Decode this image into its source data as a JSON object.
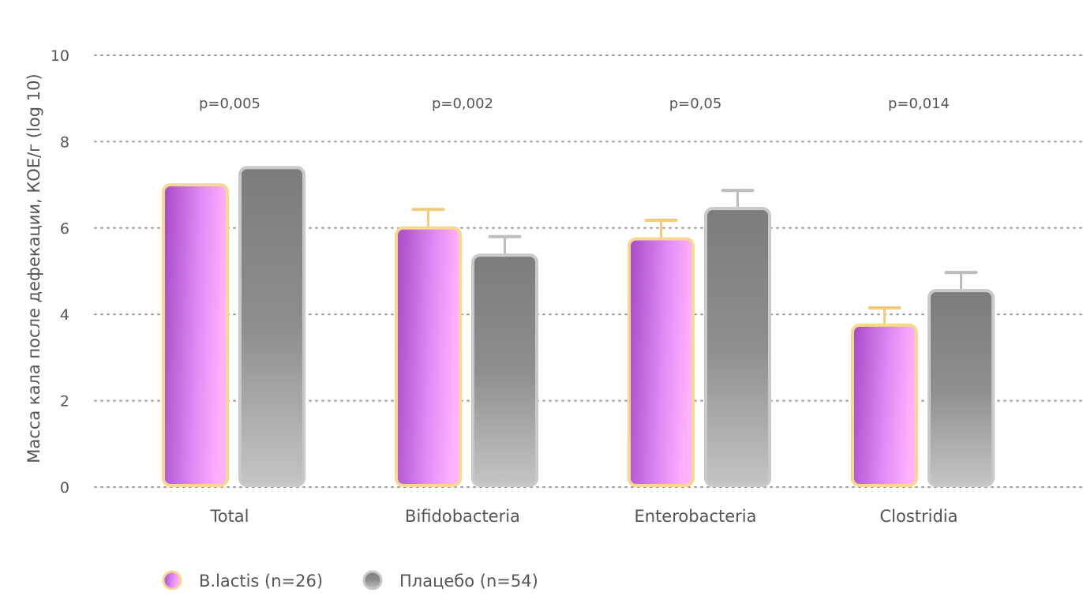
{
  "chart_data": {
    "type": "bar",
    "title": "",
    "xlabel": "",
    "ylabel": "Масса кала после дефекации, КОЕ/г  (log 10)",
    "ylim": [
      0,
      10
    ],
    "yticks": [
      "0",
      "2",
      "4",
      "6",
      "8",
      "10"
    ],
    "grid": true,
    "legend_position": "bottom-left",
    "categories": [
      "Total",
      "Bifidobacteria",
      "Enterobacteria",
      "Clostridia"
    ],
    "p_values": [
      "p=0,005",
      "p=0,002",
      "p=0,05",
      "p=0,014"
    ],
    "series": [
      {
        "name": "B.lactis (n=26)",
        "color": "#c060e0",
        "values": [
          7.0,
          6.0,
          5.75,
          3.75
        ],
        "error_upper": [
          null,
          6.43,
          6.18,
          4.15
        ]
      },
      {
        "name": "Плацебо (n=54)",
        "color": "#888888",
        "values": [
          7.4,
          5.37,
          6.45,
          4.55
        ],
        "error_upper": [
          null,
          5.8,
          6.87,
          4.97
        ]
      }
    ]
  }
}
